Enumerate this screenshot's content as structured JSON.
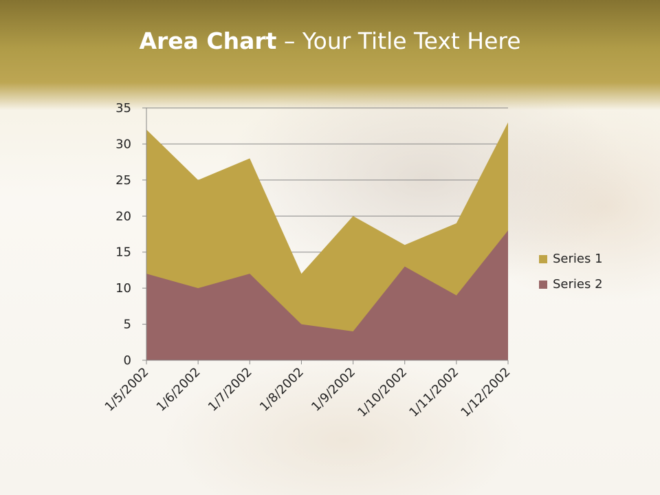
{
  "title": {
    "bold": "Area Chart",
    "rest": " – Your Title Text Here"
  },
  "chart_data": {
    "type": "area",
    "title": "Area Chart – Your Title Text Here",
    "categories": [
      "1/5/2002",
      "1/6/2002",
      "1/7/2002",
      "1/8/2002",
      "1/9/2002",
      "1/10/2002",
      "1/11/2002",
      "1/12/2002"
    ],
    "series": [
      {
        "name": "Series 1",
        "values": [
          32,
          25,
          28,
          12,
          20,
          16,
          19,
          33
        ],
        "color": "#bfa447"
      },
      {
        "name": "Series 2",
        "values": [
          12,
          10,
          12,
          5,
          4,
          13,
          9,
          18
        ],
        "color": "#986566"
      }
    ],
    "ylim": [
      0,
      35
    ],
    "yticks": [
      "0",
      "5",
      "10",
      "15",
      "20",
      "25",
      "30",
      "35"
    ],
    "grid": true,
    "legend": "right"
  }
}
